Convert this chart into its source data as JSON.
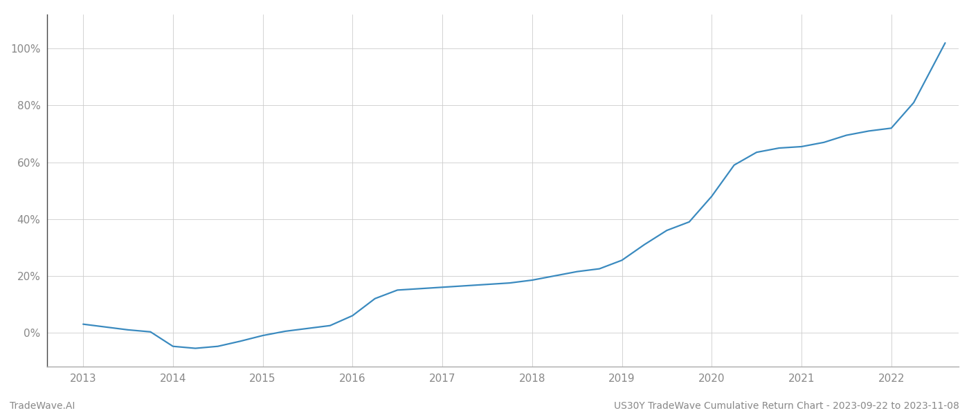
{
  "title": "",
  "footer_left": "TradeWave.AI",
  "footer_right": "US30Y TradeWave Cumulative Return Chart - 2023-09-22 to 2023-11-08",
  "line_color": "#3a8abf",
  "background_color": "#ffffff",
  "grid_color": "#cccccc",
  "x_years": [
    2013,
    2014,
    2015,
    2016,
    2017,
    2018,
    2019,
    2020,
    2021,
    2022
  ],
  "data_x": [
    2013.0,
    2013.25,
    2013.5,
    2013.75,
    2014.0,
    2014.25,
    2014.5,
    2014.75,
    2015.0,
    2015.25,
    2015.5,
    2015.75,
    2016.0,
    2016.25,
    2016.5,
    2016.75,
    2017.0,
    2017.25,
    2017.5,
    2017.75,
    2018.0,
    2018.25,
    2018.5,
    2018.75,
    2019.0,
    2019.25,
    2019.5,
    2019.75,
    2020.0,
    2020.25,
    2020.5,
    2020.75,
    2021.0,
    2021.25,
    2021.5,
    2021.75,
    2022.0,
    2022.25,
    2022.5,
    2022.6
  ],
  "data_y": [
    0.03,
    0.02,
    0.01,
    0.003,
    -0.048,
    -0.055,
    -0.048,
    -0.03,
    -0.01,
    0.005,
    0.015,
    0.025,
    0.06,
    0.12,
    0.15,
    0.155,
    0.16,
    0.165,
    0.17,
    0.175,
    0.185,
    0.2,
    0.215,
    0.225,
    0.255,
    0.31,
    0.36,
    0.39,
    0.48,
    0.59,
    0.635,
    0.65,
    0.655,
    0.67,
    0.695,
    0.71,
    0.72,
    0.81,
    0.96,
    1.02
  ],
  "ylim": [
    -0.12,
    1.12
  ],
  "xlim": [
    2012.6,
    2022.75
  ],
  "yticks": [
    0.0,
    0.2,
    0.4,
    0.6,
    0.8,
    1.0
  ],
  "ytick_labels": [
    "0%",
    "20%",
    "40%",
    "60%",
    "80%",
    "100%"
  ],
  "line_width": 1.6,
  "footer_fontsize": 10,
  "tick_fontsize": 11,
  "tick_color": "#888888",
  "axis_color": "#aaaaaa",
  "left_spine_color": "#444444"
}
